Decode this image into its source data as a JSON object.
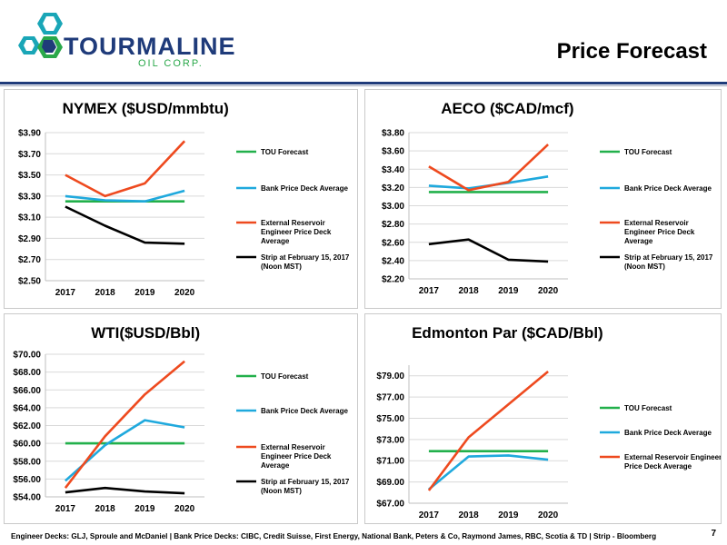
{
  "header": {
    "company_name": "TOURMALINE",
    "company_sub": "OIL CORP.",
    "slide_title": "Price Forecast",
    "colors": {
      "brand_blue": "#1f3b7a",
      "brand_green": "#2aa84a",
      "logo_teal": "#1aa6b7"
    }
  },
  "footer": {
    "text": "Engineer Decks: GLJ, Sproule and McDaniel | Bank Price Decks: CIBC, Credit Suisse, First Energy, National Bank, Peters & Co, Raymond James, RBC, Scotia & TD | Strip - Bloomberg",
    "page_number": "7"
  },
  "chart_data": [
    {
      "type": "line",
      "title": "NYMEX ($USD/mmbtu)",
      "categories": [
        "2017",
        "2018",
        "2019",
        "2020"
      ],
      "ylim": [
        2.5,
        3.9
      ],
      "yticks": [
        2.5,
        2.7,
        2.9,
        3.1,
        3.3,
        3.5,
        3.7,
        3.9
      ],
      "ytick_labels": [
        "$2.50",
        "$2.70",
        "$2.90",
        "$3.10",
        "$3.30",
        "$3.50",
        "$3.70",
        "$3.90"
      ],
      "grid": true,
      "legend_position": "right",
      "series": [
        {
          "name": "TOU Forecast",
          "color": "#22b04b",
          "values": [
            3.25,
            3.25,
            3.25,
            3.25
          ]
        },
        {
          "name": "Bank Price Deck Average",
          "color": "#1fa9dd",
          "values": [
            3.3,
            3.26,
            3.25,
            3.35
          ]
        },
        {
          "name": "External Reservoir Engineer Price Deck Average",
          "legend_lines": [
            "External Reservoir",
            "Engineer Price Deck",
            "Average"
          ],
          "color": "#ee4a1f",
          "values": [
            3.5,
            3.3,
            3.42,
            3.82
          ]
        },
        {
          "name": "Strip at February 15, 2017 (Noon MST)",
          "legend_lines": [
            "Strip at February 15, 2017",
            "(Noon MST)"
          ],
          "color": "#000000",
          "values": [
            3.2,
            3.02,
            2.86,
            2.85
          ]
        }
      ]
    },
    {
      "type": "line",
      "title": "AECO ($CAD/mcf)",
      "categories": [
        "2017",
        "2018",
        "2019",
        "2020"
      ],
      "ylim": [
        2.2,
        3.8
      ],
      "yticks": [
        2.2,
        2.4,
        2.6,
        2.8,
        3.0,
        3.2,
        3.4,
        3.6,
        3.8
      ],
      "ytick_labels": [
        "$2.20",
        "$2.40",
        "$2.60",
        "$2.80",
        "$3.00",
        "$3.20",
        "$3.40",
        "$3.60",
        "$3.80"
      ],
      "grid": true,
      "legend_position": "right",
      "series": [
        {
          "name": "TOU Forecast",
          "color": "#22b04b",
          "values": [
            3.15,
            3.15,
            3.15,
            3.15
          ]
        },
        {
          "name": "Bank Price Deck Average",
          "color": "#1fa9dd",
          "values": [
            3.22,
            3.19,
            3.25,
            3.32
          ]
        },
        {
          "name": "External Reservoir Engineer Price Deck Average",
          "legend_lines": [
            "External Reservoir",
            "Engineer Price Deck",
            "Average"
          ],
          "color": "#ee4a1f",
          "values": [
            3.43,
            3.17,
            3.26,
            3.67
          ]
        },
        {
          "name": "Strip at February 15, 2017 (Noon MST)",
          "legend_lines": [
            "Strip at February 15, 2017",
            "(Noon MST)"
          ],
          "color": "#000000",
          "values": [
            2.58,
            2.63,
            2.41,
            2.39
          ]
        }
      ]
    },
    {
      "type": "line",
      "title": "WTI($USD/Bbl)",
      "categories": [
        "2017",
        "2018",
        "2019",
        "2020"
      ],
      "ylim": [
        54.0,
        70.0
      ],
      "yticks": [
        54,
        56,
        58,
        60,
        62,
        64,
        66,
        68,
        70
      ],
      "ytick_labels": [
        "$54.00",
        "$56.00",
        "$58.00",
        "$60.00",
        "$62.00",
        "$64.00",
        "$66.00",
        "$68.00",
        "$70.00"
      ],
      "grid": true,
      "legend_position": "right",
      "series": [
        {
          "name": "TOU Forecast",
          "color": "#22b04b",
          "values": [
            60.0,
            60.0,
            60.0,
            60.0
          ]
        },
        {
          "name": "Bank Price Deck Average",
          "color": "#1fa9dd",
          "values": [
            55.8,
            59.8,
            62.6,
            61.8
          ]
        },
        {
          "name": "External Reservoir Engineer Price Deck Average",
          "legend_lines": [
            "External Reservoir",
            "Engineer Price Deck",
            "Average"
          ],
          "color": "#ee4a1f",
          "values": [
            55.0,
            60.8,
            65.5,
            69.2
          ]
        },
        {
          "name": "Strip at February 15, 2017 (Noon MST)",
          "legend_lines": [
            "Strip at February 15, 2017",
            "(Noon MST)"
          ],
          "color": "#000000",
          "values": [
            54.5,
            55.0,
            54.6,
            54.4
          ]
        }
      ]
    },
    {
      "type": "line",
      "title": "Edmonton Par ($CAD/Bbl)",
      "categories": [
        "2017",
        "2018",
        "2019",
        "2020"
      ],
      "ylim": [
        67.0,
        80.0
      ],
      "yticks": [
        67,
        69,
        71,
        73,
        75,
        77,
        79
      ],
      "ytick_labels": [
        "$67.00",
        "$69.00",
        "$71.00",
        "$73.00",
        "$75.00",
        "$77.00",
        "$79.00"
      ],
      "grid": true,
      "legend_position": "right",
      "series": [
        {
          "name": "TOU Forecast",
          "color": "#22b04b",
          "values": [
            71.9,
            71.9,
            71.9,
            71.9
          ]
        },
        {
          "name": "Bank Price Deck Average",
          "color": "#1fa9dd",
          "values": [
            68.3,
            71.4,
            71.5,
            71.1
          ]
        },
        {
          "name": "External Reservoir Engineer Price Deck Average",
          "legend_lines": [
            "External Reservoir Engineer",
            "Price Deck Average"
          ],
          "color": "#ee4a1f",
          "values": [
            68.2,
            73.2,
            76.3,
            79.4
          ]
        }
      ]
    }
  ]
}
